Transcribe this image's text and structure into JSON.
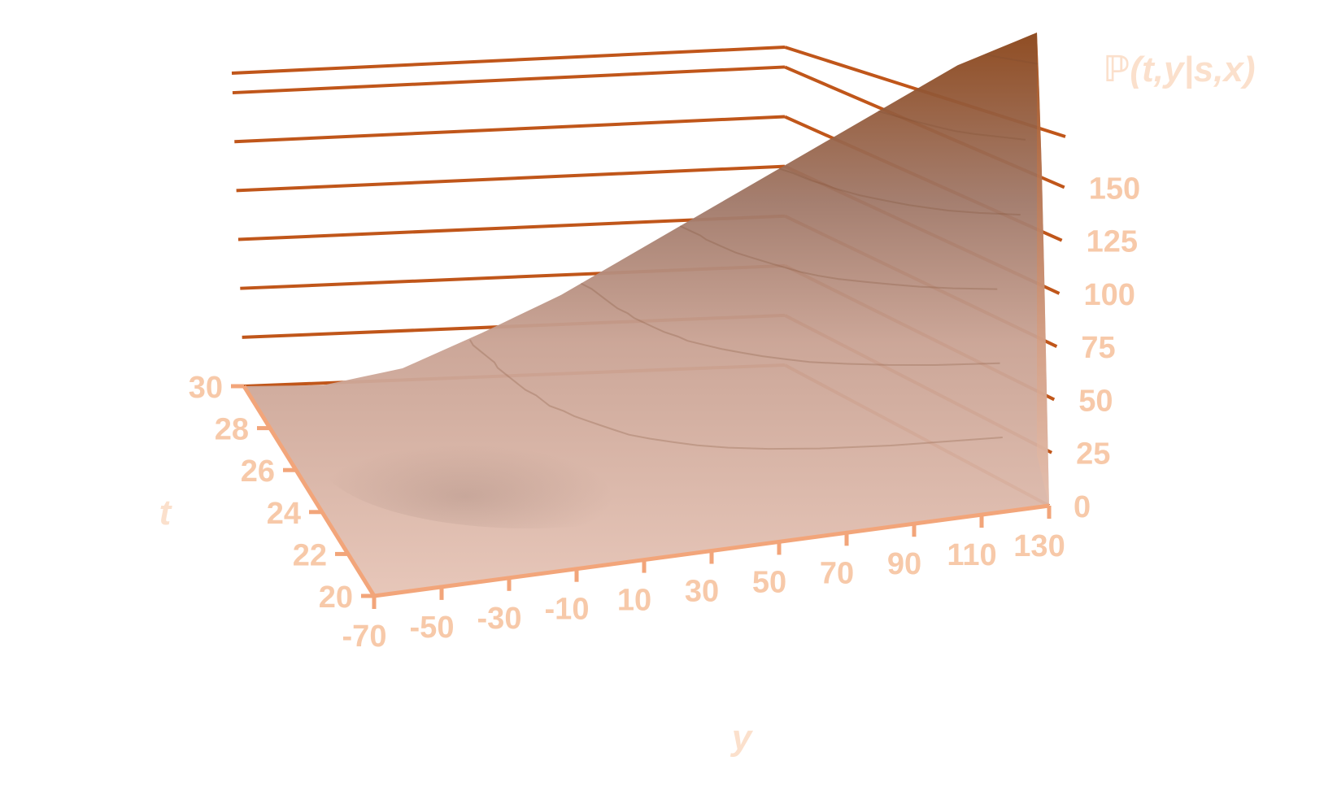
{
  "chart_data": {
    "type": "surface",
    "title": "",
    "xlabel": "y",
    "ylabel": "t",
    "zlabel": "ℙ(t,y|s,x)",
    "x_ticks": [
      "-70",
      "-50",
      "-30",
      "-10",
      "10",
      "30",
      "50",
      "70",
      "90",
      "110",
      "130"
    ],
    "y_ticks": [
      "20",
      "22",
      "24",
      "26",
      "28",
      "30"
    ],
    "z_ticks": [
      "0",
      "25",
      "50",
      "75",
      "100",
      "125",
      "150"
    ],
    "xlim": [
      -70,
      130
    ],
    "ylim": [
      20,
      30
    ],
    "zlim": [
      0,
      160
    ],
    "grid": true,
    "surface": {
      "description_free_values": true,
      "t_front": 20,
      "t_back": 30,
      "back_edge_profile": {
        "y": [
          -70,
          -50,
          -30,
          -10,
          10,
          30,
          50,
          70,
          90,
          110,
          130
        ],
        "z": [
          0,
          3,
          12,
          28,
          45,
          65,
          85,
          105,
          125,
          145,
          160
        ]
      },
      "right_edge_profile": {
        "t": [
          20,
          22,
          24,
          26,
          28,
          30
        ],
        "z": [
          0,
          40,
          80,
          115,
          140,
          160
        ]
      }
    },
    "colors": {
      "frame": "#c0561a",
      "front_axis": "#f2a57a",
      "tick_text": "#f7c9a9",
      "surface_low": "#e6c4b6",
      "surface_mid": "#a07868",
      "surface_high": "#8a4418",
      "surface_right": "#c9743c"
    }
  }
}
